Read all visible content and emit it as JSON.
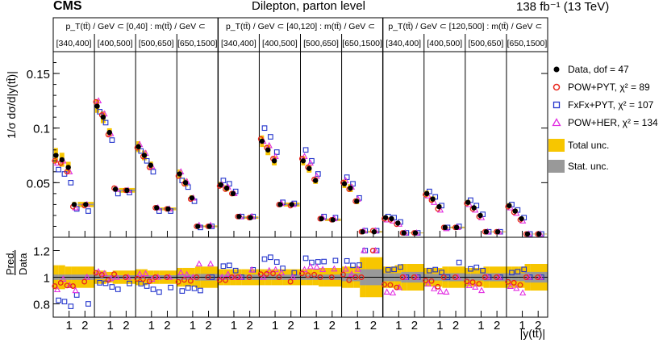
{
  "header": {
    "experiment": "CMS",
    "title": "Dilepton, parton level",
    "lumi": "138 fb⁻¹ (13 TeV)"
  },
  "legend": [
    {
      "key": "data",
      "label": "Data, dof = 47",
      "marker": "dot",
      "color": "#000000"
    },
    {
      "key": "pow_pyt",
      "label": "POW+PYT, χ² = 89",
      "marker": "circle",
      "color": "#e8251b"
    },
    {
      "key": "fxfx_pyt",
      "label": "FxFx+PYT, χ² = 107",
      "marker": "square",
      "color": "#2233cc"
    },
    {
      "key": "pow_her",
      "label": "POW+HER, χ² = 134",
      "marker": "triangle",
      "color": "#e22ee2"
    },
    {
      "key": "total_unc",
      "label": "Total unc.",
      "marker": "band",
      "color": "#f7c600"
    },
    {
      "key": "stat_unc",
      "label": "Stat. unc.",
      "marker": "band",
      "color": "#999999"
    }
  ],
  "chart_data": {
    "type": "scatter",
    "ylabel": "1/σ dσ/d|y(tt̄)|",
    "ratio_ylabel_top": "Pred.",
    "ratio_ylabel_bottom": "Data",
    "xlabel": "|y(tt̄)|",
    "ylim": [
      0,
      0.17
    ],
    "yticks": [
      "0.05",
      "0.1",
      "0.15"
    ],
    "ytick_values": [
      0.05,
      0.1,
      0.15
    ],
    "ratio_ylim": [
      0.7,
      1.3
    ],
    "ratio_yticks": [
      "0.8",
      "1",
      "1.2"
    ],
    "ratio_ytick_values": [
      0.8,
      1.0,
      1.2
    ],
    "x_tick_labels": [
      "1",
      "2"
    ],
    "x_tick_values": [
      1,
      2
    ],
    "xlim_per_panel": [
      0,
      2.6
    ],
    "group_labels": [
      "p_T(tt̄) / GeV ⊂ [0,40] : m(tt̄) / GeV ⊂",
      "p_T(tt̄) / GeV ⊂ [40,120] : m(tt̄) / GeV ⊂",
      "p_T(tt̄) / GeV ⊂ [120,500] : m(tt̄) / GeV ⊂"
    ],
    "mass_labels": [
      "[340,400]",
      "[400,500]",
      "[500,650]",
      "[650,1500]"
    ],
    "bin_edges": [
      0,
      0.35,
      0.75,
      1.15,
      1.5,
      2.6
    ],
    "panels": [
      {
        "data": [
          0.075,
          0.071,
          0.064,
          0.03,
          0.03
        ],
        "pow_pyt": [
          0.07,
          0.068,
          0.06,
          0.028,
          0.029
        ],
        "fxfx_pyt": [
          0.062,
          0.058,
          0.05,
          0.026,
          0.024
        ],
        "pow_her": [
          0.068,
          0.07,
          0.06,
          0.027,
          0.03
        ],
        "total_unc_rel": [
          0.09,
          0.09,
          0.08,
          0.08,
          0.08
        ],
        "stat_unc_rel": [
          0.02,
          0.02,
          0.02,
          0.02,
          0.02
        ]
      },
      {
        "data": [
          0.12,
          0.11,
          0.096,
          0.044,
          0.043
        ],
        "pow_pyt": [
          0.124,
          0.112,
          0.094,
          0.045,
          0.043
        ],
        "fxfx_pyt": [
          0.115,
          0.105,
          0.089,
          0.04,
          0.041
        ],
        "pow_her": [
          0.125,
          0.113,
          0.095,
          0.044,
          0.043
        ],
        "total_unc_rel": [
          0.05,
          0.05,
          0.04,
          0.05,
          0.05
        ],
        "stat_unc_rel": [
          0.015,
          0.015,
          0.015,
          0.015,
          0.015
        ]
      },
      {
        "data": [
          0.083,
          0.075,
          0.066,
          0.027,
          0.026
        ],
        "pow_pyt": [
          0.082,
          0.074,
          0.064,
          0.027,
          0.026
        ],
        "fxfx_pyt": [
          0.079,
          0.07,
          0.06,
          0.024,
          0.024
        ],
        "pow_her": [
          0.085,
          0.077,
          0.065,
          0.027,
          0.026
        ],
        "total_unc_rel": [
          0.06,
          0.06,
          0.05,
          0.05,
          0.05
        ],
        "stat_unc_rel": [
          0.015,
          0.015,
          0.015,
          0.015,
          0.015
        ]
      },
      {
        "data": [
          0.058,
          0.05,
          0.036,
          0.01,
          0.01
        ],
        "pow_pyt": [
          0.056,
          0.049,
          0.035,
          0.01,
          0.01
        ],
        "fxfx_pyt": [
          0.052,
          0.046,
          0.033,
          0.009,
          0.01
        ],
        "pow_her": [
          0.06,
          0.051,
          0.036,
          0.011,
          0.011
        ],
        "total_unc_rel": [
          0.07,
          0.07,
          0.07,
          0.08,
          0.08
        ],
        "stat_unc_rel": [
          0.02,
          0.02,
          0.02,
          0.025,
          0.025
        ]
      },
      {
        "data": [
          0.048,
          0.045,
          0.04,
          0.019,
          0.018
        ],
        "pow_pyt": [
          0.047,
          0.044,
          0.04,
          0.019,
          0.018
        ],
        "fxfx_pyt": [
          0.052,
          0.049,
          0.042,
          0.019,
          0.019
        ],
        "pow_her": [
          0.048,
          0.046,
          0.04,
          0.019,
          0.019
        ],
        "total_unc_rel": [
          0.06,
          0.06,
          0.06,
          0.06,
          0.06
        ],
        "stat_unc_rel": [
          0.02,
          0.02,
          0.02,
          0.02,
          0.02
        ]
      },
      {
        "data": [
          0.088,
          0.08,
          0.07,
          0.03,
          0.03
        ],
        "pow_pyt": [
          0.09,
          0.082,
          0.072,
          0.03,
          0.029
        ],
        "fxfx_pyt": [
          0.1,
          0.092,
          0.078,
          0.032,
          0.031
        ],
        "pow_her": [
          0.088,
          0.084,
          0.074,
          0.031,
          0.03
        ],
        "total_unc_rel": [
          0.06,
          0.06,
          0.06,
          0.06,
          0.06
        ],
        "stat_unc_rel": [
          0.02,
          0.02,
          0.02,
          0.02,
          0.02
        ]
      },
      {
        "data": [
          0.07,
          0.063,
          0.052,
          0.017,
          0.016
        ],
        "pow_pyt": [
          0.072,
          0.064,
          0.053,
          0.017,
          0.016
        ],
        "fxfx_pyt": [
          0.08,
          0.07,
          0.058,
          0.019,
          0.018
        ],
        "pow_her": [
          0.074,
          0.068,
          0.056,
          0.018,
          0.017
        ],
        "total_unc_rel": [
          0.06,
          0.06,
          0.06,
          0.07,
          0.07
        ],
        "stat_unc_rel": [
          0.02,
          0.02,
          0.02,
          0.02,
          0.02
        ]
      },
      {
        "data": [
          0.049,
          0.045,
          0.033,
          0.005,
          0.005
        ],
        "pow_pyt": [
          0.05,
          0.044,
          0.033,
          0.005,
          0.006
        ],
        "fxfx_pyt": [
          0.055,
          0.049,
          0.036,
          0.006,
          0.006
        ],
        "pow_her": [
          0.052,
          0.046,
          0.035,
          0.006,
          0.006
        ],
        "total_unc_rel": [
          0.08,
          0.08,
          0.08,
          0.15,
          0.15
        ],
        "stat_unc_rel": [
          0.03,
          0.03,
          0.03,
          0.06,
          0.06
        ]
      },
      {
        "data": [
          0.018,
          0.017,
          0.013,
          0.004,
          0.004
        ],
        "pow_pyt": [
          0.017,
          0.016,
          0.012,
          0.004,
          0.004
        ],
        "fxfx_pyt": [
          0.019,
          0.018,
          0.014,
          0.004,
          0.004
        ],
        "pow_her": [
          0.016,
          0.015,
          0.012,
          0.004,
          0.004
        ],
        "total_unc_rel": [
          0.08,
          0.08,
          0.09,
          0.1,
          0.1
        ],
        "stat_unc_rel": [
          0.03,
          0.03,
          0.03,
          0.04,
          0.04
        ]
      },
      {
        "data": [
          0.04,
          0.035,
          0.028,
          0.009,
          0.009
        ],
        "pow_pyt": [
          0.039,
          0.034,
          0.026,
          0.009,
          0.009
        ],
        "fxfx_pyt": [
          0.042,
          0.037,
          0.029,
          0.009,
          0.01
        ],
        "pow_her": [
          0.038,
          0.032,
          0.025,
          0.008,
          0.009
        ],
        "total_unc_rel": [
          0.07,
          0.07,
          0.07,
          0.08,
          0.08
        ],
        "stat_unc_rel": [
          0.025,
          0.025,
          0.025,
          0.03,
          0.03
        ]
      },
      {
        "data": [
          0.032,
          0.027,
          0.02,
          0.005,
          0.005
        ],
        "pow_pyt": [
          0.031,
          0.026,
          0.019,
          0.005,
          0.005
        ],
        "fxfx_pyt": [
          0.034,
          0.029,
          0.021,
          0.005,
          0.005
        ],
        "pow_her": [
          0.03,
          0.025,
          0.018,
          0.005,
          0.005
        ],
        "total_unc_rel": [
          0.07,
          0.07,
          0.07,
          0.08,
          0.08
        ],
        "stat_unc_rel": [
          0.025,
          0.025,
          0.025,
          0.03,
          0.03
        ]
      },
      {
        "data": [
          0.029,
          0.024,
          0.017,
          0.003,
          0.003
        ],
        "pow_pyt": [
          0.028,
          0.023,
          0.016,
          0.003,
          0.003
        ],
        "fxfx_pyt": [
          0.03,
          0.025,
          0.018,
          0.003,
          0.003
        ],
        "pow_her": [
          0.027,
          0.022,
          0.015,
          0.003,
          0.003
        ],
        "total_unc_rel": [
          0.08,
          0.08,
          0.08,
          0.1,
          0.1
        ],
        "stat_unc_rel": [
          0.03,
          0.03,
          0.03,
          0.04,
          0.04
        ]
      }
    ]
  }
}
